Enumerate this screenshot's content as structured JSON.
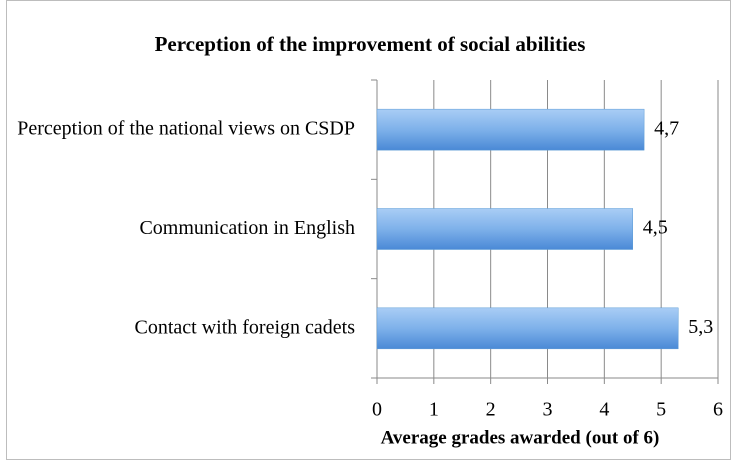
{
  "chart_data": {
    "type": "bar",
    "orientation": "horizontal",
    "title": "Perception of the improvement of social abilities",
    "categories": [
      "Perception of the national views on CSDP",
      "Communication in English",
      "Contact with foreign cadets"
    ],
    "values": [
      4.7,
      4.5,
      5.3
    ],
    "value_labels": [
      "4,7",
      "4,5",
      "5,3"
    ],
    "color": "#5b9bd5",
    "xlabel": "Average grades awarded (out of 6)",
    "xlim": [
      0,
      6
    ],
    "xticks": [
      0,
      1,
      2,
      3,
      4,
      5,
      6
    ],
    "grid": true
  }
}
